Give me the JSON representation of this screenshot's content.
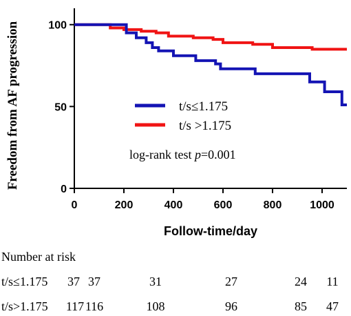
{
  "chart_data": {
    "type": "line",
    "subtype": "kaplan-meier step",
    "xlabel": "Follow-time/day",
    "ylabel": "Freedom from AF progression",
    "xlim": [
      0,
      1100
    ],
    "ylim": [
      0,
      110
    ],
    "xticks": [
      "0",
      "200",
      "400",
      "600",
      "800",
      "1000"
    ],
    "yticks": [
      "0",
      "50",
      "100"
    ],
    "grid": false,
    "legend_position": "center-right",
    "annotation": {
      "prefix": "log-rank test ",
      "italic": "p",
      "suffix": "=0.001"
    },
    "series": [
      {
        "name": "t/s≤1.175",
        "color": "#1414b4",
        "x": [
          0,
          210,
          210,
          250,
          250,
          290,
          290,
          315,
          315,
          340,
          340,
          400,
          400,
          490,
          490,
          570,
          570,
          590,
          590,
          730,
          730,
          950,
          950,
          1010,
          1010,
          1080,
          1080,
          1100
        ],
        "y": [
          100,
          100,
          95,
          95,
          92,
          92,
          89,
          89,
          86,
          86,
          84,
          84,
          81,
          81,
          78,
          78,
          76,
          76,
          73,
          73,
          70,
          70,
          65,
          65,
          59,
          59,
          51,
          51
        ]
      },
      {
        "name": "t/s >1.175",
        "color": "#f01414",
        "x": [
          0,
          145,
          145,
          200,
          200,
          270,
          270,
          330,
          330,
          380,
          380,
          480,
          480,
          560,
          560,
          600,
          600,
          720,
          720,
          800,
          800,
          960,
          960,
          1100
        ],
        "y": [
          100,
          100,
          98,
          98,
          97,
          97,
          96,
          96,
          95,
          95,
          93,
          93,
          92,
          92,
          91,
          91,
          89,
          89,
          88,
          88,
          86,
          86,
          85,
          85
        ]
      }
    ]
  },
  "risk_table": {
    "title": "Number at risk",
    "rows": [
      {
        "label": "t/s≤1.175",
        "values": [
          "37",
          "37",
          "31",
          "27",
          "24",
          "11"
        ]
      },
      {
        "label": "t/s>1.175",
        "values": [
          "117",
          "116",
          "108",
          "96",
          "85",
          "47"
        ]
      }
    ]
  }
}
